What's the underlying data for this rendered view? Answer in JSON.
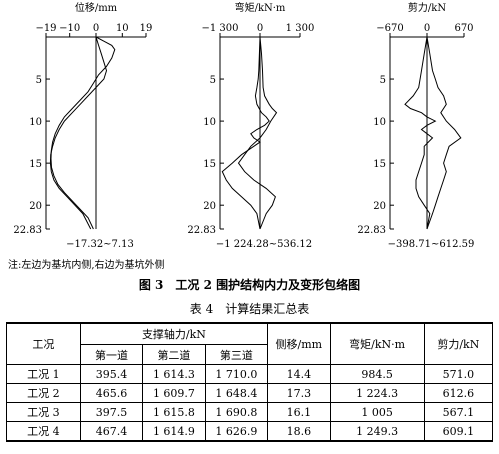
{
  "figure": {
    "panels": [
      {
        "id": "disp",
        "title": "位移/mm",
        "ticks": [
          "−19",
          "−10",
          "0",
          "10",
          "19"
        ],
        "tick_values": [
          -19,
          -10,
          0,
          10,
          19
        ],
        "range_label": "−17.32~7.13",
        "min": -17.32,
        "max": 7.13
      },
      {
        "id": "moment",
        "title": "弯矩/kN·m",
        "ticks": [
          "−1 300",
          "0",
          "1 300"
        ],
        "tick_values": [
          -1300,
          0,
          1300
        ],
        "range_label": "−1 224.28~536.12",
        "min": -1224.28,
        "max": 536.12
      },
      {
        "id": "shear",
        "title": "剪力/kN",
        "ticks": [
          "−670",
          "0",
          "670"
        ],
        "tick_values": [
          -670,
          0,
          670
        ],
        "range_label": "−398.71~612.59",
        "min": -398.71,
        "max": 612.59
      }
    ],
    "depth_ticks": [
      "5",
      "10",
      "15",
      "20",
      "22.83"
    ],
    "depth_values": [
      5,
      10,
      15,
      20,
      22.83
    ],
    "note": "注:左边为基坑内侧,右边为基坑外侧",
    "caption": "图 3　工况 2 围护结构内力及变形包络图"
  },
  "chart_data": [
    {
      "type": "line",
      "title": "位移/mm",
      "xlim": [
        -19,
        19
      ],
      "ylim": [
        22.83,
        0
      ],
      "series": [
        {
          "name": "",
          "points": [
            [
              0,
              0
            ],
            [
              1,
              1
            ],
            [
              2,
              2
            ],
            [
              3,
              3
            ],
            [
              4,
              4
            ],
            [
              3,
              5
            ],
            [
              0,
              6
            ],
            [
              -3,
              7
            ],
            [
              -6,
              8
            ],
            [
              -9,
              9
            ],
            [
              -12,
              10
            ],
            [
              -14,
              11
            ],
            [
              -15.5,
              12
            ],
            [
              -16.5,
              13
            ],
            [
              -17.2,
              14
            ],
            [
              -17.32,
              15
            ],
            [
              -17,
              16
            ],
            [
              -16,
              17
            ],
            [
              -14,
              18
            ],
            [
              -11,
              19
            ],
            [
              -8,
              20
            ],
            [
              -5,
              21
            ],
            [
              -2,
              22.83
            ]
          ]
        },
        {
          "name": "",
          "points": [
            [
              0,
              0
            ],
            [
              3,
              0.5
            ],
            [
              6,
              1
            ],
            [
              7.13,
              1.5
            ],
            [
              6,
              2.5
            ],
            [
              4,
              3.5
            ],
            [
              1,
              4.5
            ],
            [
              -1,
              5.5
            ],
            [
              -3,
              6.5
            ],
            [
              -6,
              7.5
            ],
            [
              -9,
              8.5
            ],
            [
              -12,
              9.5
            ],
            [
              -14,
              10.5
            ],
            [
              -15.5,
              11.5
            ],
            [
              -16.5,
              12.5
            ],
            [
              -17,
              13.5
            ],
            [
              -17.1,
              14.5
            ],
            [
              -16.9,
              15.5
            ],
            [
              -16,
              16.5
            ],
            [
              -14.5,
              17.5
            ],
            [
              -12,
              18.5
            ],
            [
              -9,
              19.5
            ],
            [
              -6,
              20.5
            ],
            [
              -3,
              21.5
            ],
            [
              -1,
              22.83
            ]
          ]
        }
      ]
    },
    {
      "type": "line",
      "title": "弯矩/kN·m",
      "xlim": [
        -1300,
        1300
      ],
      "ylim": [
        22.83,
        0
      ],
      "series": [
        {
          "name": "",
          "points": [
            [
              0,
              0
            ],
            [
              -20,
              2
            ],
            [
              -40,
              4
            ],
            [
              -60,
              5
            ],
            [
              -100,
              6
            ],
            [
              -150,
              7
            ],
            [
              -100,
              8
            ],
            [
              50,
              9
            ],
            [
              200,
              9.5
            ],
            [
              300,
              10
            ],
            [
              150,
              10.5
            ],
            [
              -100,
              11
            ],
            [
              -300,
              11.5
            ],
            [
              -200,
              12
            ],
            [
              0,
              12.5
            ],
            [
              -200,
              13
            ],
            [
              -600,
              14
            ],
            [
              -900,
              15
            ],
            [
              -1224.28,
              16
            ],
            [
              -1100,
              17
            ],
            [
              -900,
              18
            ],
            [
              -600,
              19
            ],
            [
              -300,
              20
            ],
            [
              -100,
              21
            ],
            [
              0,
              22.83
            ]
          ]
        },
        {
          "name": "",
          "points": [
            [
              0,
              0
            ],
            [
              50,
              2
            ],
            [
              80,
              4
            ],
            [
              100,
              6
            ],
            [
              150,
              7
            ],
            [
              300,
              8
            ],
            [
              400,
              8.5
            ],
            [
              536.12,
              9
            ],
            [
              350,
              10
            ],
            [
              200,
              11
            ],
            [
              0,
              12
            ],
            [
              -300,
              13
            ],
            [
              -500,
              14
            ],
            [
              -700,
              15
            ],
            [
              -500,
              16
            ],
            [
              -200,
              17
            ],
            [
              200,
              18
            ],
            [
              500,
              19
            ],
            [
              400,
              20
            ],
            [
              200,
              21
            ],
            [
              0,
              22.83
            ]
          ]
        }
      ]
    },
    {
      "type": "line",
      "title": "剪力/kN",
      "xlim": [
        -670,
        670
      ],
      "ylim": [
        22.83,
        0
      ],
      "series": [
        {
          "name": "",
          "points": [
            [
              0,
              0
            ],
            [
              -50,
              2
            ],
            [
              -100,
              4
            ],
            [
              -150,
              6
            ],
            [
              -250,
              7
            ],
            [
              -398.71,
              8
            ],
            [
              -300,
              8.5
            ],
            [
              -100,
              9
            ],
            [
              0,
              9.5
            ],
            [
              150,
              10
            ],
            [
              0,
              10.5
            ],
            [
              -100,
              11
            ],
            [
              0,
              11.5
            ],
            [
              100,
              12
            ],
            [
              -50,
              13
            ],
            [
              -50,
              14
            ],
            [
              -100,
              15
            ],
            [
              -150,
              16
            ],
            [
              -200,
              17
            ],
            [
              -200,
              18
            ],
            [
              -150,
              19
            ],
            [
              -50,
              20
            ],
            [
              50,
              21
            ],
            [
              0,
              22.83
            ]
          ]
        },
        {
          "name": "",
          "points": [
            [
              0,
              0
            ],
            [
              50,
              2
            ],
            [
              100,
              4
            ],
            [
              150,
              5
            ],
            [
              200,
              6
            ],
            [
              300,
              7
            ],
            [
              350,
              8
            ],
            [
              250,
              9
            ],
            [
              350,
              10
            ],
            [
              500,
              11
            ],
            [
              612.59,
              12
            ],
            [
              400,
              13
            ],
            [
              350,
              14
            ],
            [
              300,
              15
            ],
            [
              350,
              16
            ],
            [
              300,
              17
            ],
            [
              250,
              18
            ],
            [
              200,
              19
            ],
            [
              150,
              20
            ],
            [
              100,
              21
            ],
            [
              0,
              22.83
            ]
          ]
        }
      ]
    }
  ],
  "table": {
    "caption": "表 4　计算结果汇总表",
    "headers": {
      "case": "工况",
      "axial_group": "支撑轴力/kN",
      "axial_1": "第一道",
      "axial_2": "第二道",
      "axial_3": "第三道",
      "disp": "侧移/mm",
      "moment": "弯矩/kN·m",
      "shear": "剪力/kN"
    },
    "rows": [
      [
        "工况 1",
        "395.4",
        "1 614.3",
        "1 710.0",
        "14.4",
        "984.5",
        "571.0"
      ],
      [
        "工况 2",
        "465.6",
        "1 609.7",
        "1 648.4",
        "17.3",
        "1 224.3",
        "612.6"
      ],
      [
        "工况 3",
        "397.5",
        "1 615.8",
        "1 690.8",
        "16.1",
        "1 005",
        "567.1"
      ],
      [
        "工况 4",
        "467.4",
        "1 614.9",
        "1 626.9",
        "18.6",
        "1 249.3",
        "609.1"
      ]
    ]
  }
}
